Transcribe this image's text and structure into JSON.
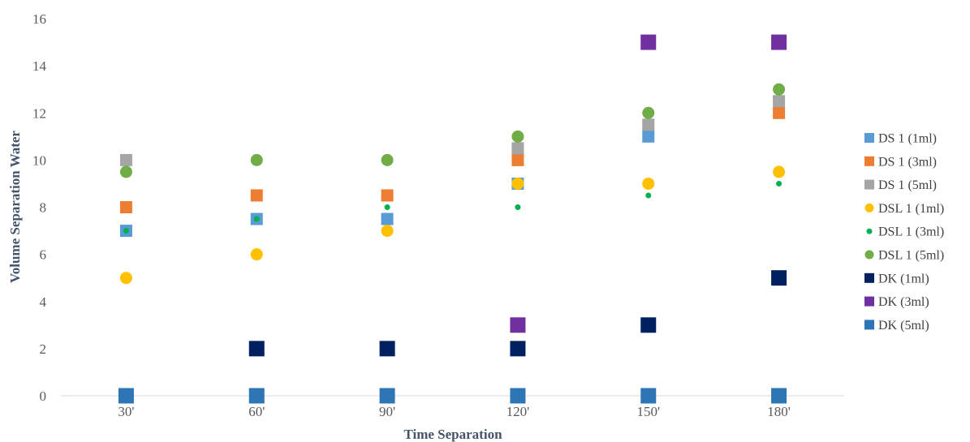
{
  "chart_data": {
    "type": "scatter",
    "title": "",
    "xlabel": "Time Separation",
    "ylabel": "Volume Separation Water",
    "categories": [
      "30'",
      "60'",
      "90'",
      "120'",
      "150'",
      "180'"
    ],
    "ylim": [
      0,
      16
    ],
    "yticks": [
      0,
      2,
      4,
      6,
      8,
      10,
      12,
      14,
      16
    ],
    "grid": false,
    "legend_position": "right",
    "series": [
      {
        "name": "DS 1 (1ml)",
        "marker": "square",
        "size": "medium",
        "color": "#5b9bd5",
        "values": [
          7,
          7.5,
          7.5,
          9,
          11,
          null
        ]
      },
      {
        "name": "DS 1 (3ml)",
        "marker": "square",
        "size": "medium",
        "color": "#ed7d31",
        "values": [
          8,
          8.5,
          8.5,
          10,
          null,
          12
        ]
      },
      {
        "name": "DS 1 (5ml)",
        "marker": "square",
        "size": "medium",
        "color": "#a5a5a5",
        "values": [
          10,
          null,
          null,
          10.5,
          11.5,
          12.5
        ]
      },
      {
        "name": "DSL 1 (1ml)",
        "marker": "circle",
        "size": "medium",
        "color": "#ffc000",
        "values": [
          5,
          6,
          7,
          9,
          9,
          9.5
        ]
      },
      {
        "name": "DSL 1 (3ml)",
        "marker": "circle",
        "size": "small",
        "color": "#00b050",
        "values": [
          7,
          7.5,
          8,
          8,
          8.5,
          9
        ]
      },
      {
        "name": "DSL 1 (5ml)",
        "marker": "circle",
        "size": "medium",
        "color": "#70ad47",
        "values": [
          9.5,
          10,
          10,
          11,
          12,
          13
        ]
      },
      {
        "name": "DK (1ml)",
        "marker": "square",
        "size": "large",
        "color": "#002060",
        "values": [
          null,
          2,
          2,
          2,
          3,
          5
        ]
      },
      {
        "name": "DK (3ml)",
        "marker": "square",
        "size": "large",
        "color": "#7030a0",
        "values": [
          null,
          null,
          null,
          3,
          15,
          15
        ]
      },
      {
        "name": "DK (5ml)",
        "marker": "square",
        "size": "large",
        "color": "#2e75b6",
        "values": [
          0,
          0,
          0,
          0,
          0,
          0
        ]
      }
    ]
  }
}
